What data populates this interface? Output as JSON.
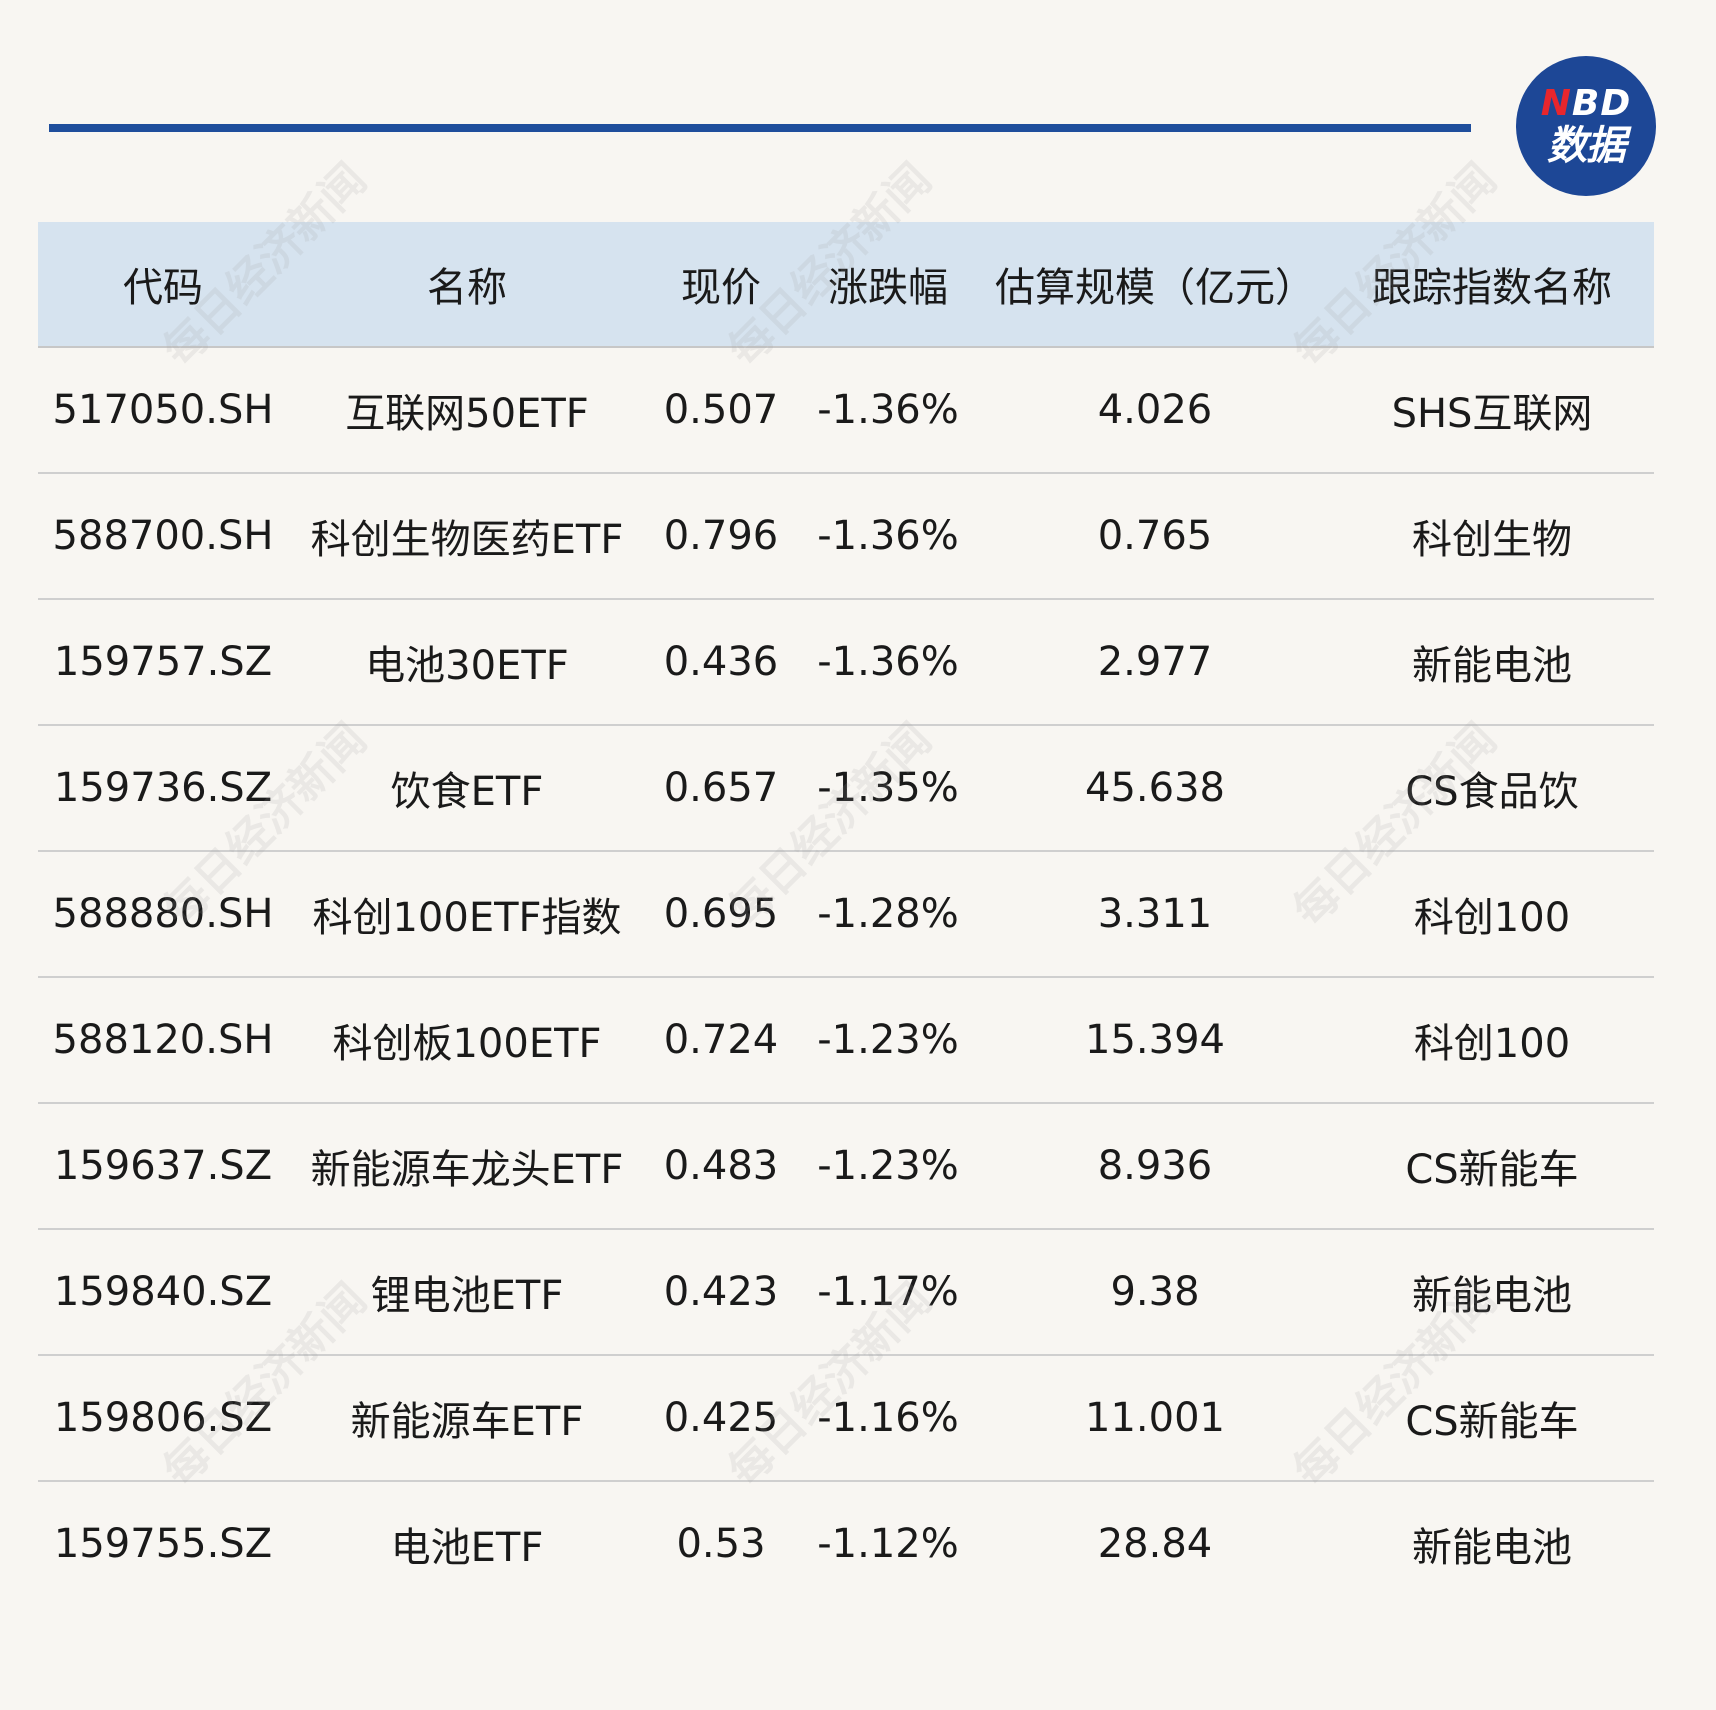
{
  "logo": {
    "top": "NBD",
    "top_accent": "N",
    "top_rest": "BD",
    "bottom": "数据"
  },
  "watermark_text": "每日经济新闻",
  "colors": {
    "rule": "#1f4e9c",
    "header_bg": "#d6e3ef",
    "logo_bg": "#1d4796",
    "logo_accent": "#e8262d",
    "background": "#f8f6f2"
  },
  "chart_data": {
    "type": "table",
    "columns": [
      "代码",
      "名称",
      "现价",
      "涨跌幅",
      "估算规模（亿元）",
      "跟踪指数名称"
    ],
    "rows": [
      [
        "517050.SH",
        "互联网50ETF",
        "0.507",
        "-1.36%",
        "4.026",
        "SHS互联网"
      ],
      [
        "588700.SH",
        "科创生物医药ETF",
        "0.796",
        "-1.36%",
        "0.765",
        "科创生物"
      ],
      [
        "159757.SZ",
        "电池30ETF",
        "0.436",
        "-1.36%",
        "2.977",
        "新能电池"
      ],
      [
        "159736.SZ",
        "饮食ETF",
        "0.657",
        "-1.35%",
        "45.638",
        "CS食品饮"
      ],
      [
        "588880.SH",
        "科创100ETF指数",
        "0.695",
        "-1.28%",
        "3.311",
        "科创100"
      ],
      [
        "588120.SH",
        "科创板100ETF",
        "0.724",
        "-1.23%",
        "15.394",
        "科创100"
      ],
      [
        "159637.SZ",
        "新能源车龙头ETF",
        "0.483",
        "-1.23%",
        "8.936",
        "CS新能车"
      ],
      [
        "159840.SZ",
        "锂电池ETF",
        "0.423",
        "-1.17%",
        "9.38",
        "新能电池"
      ],
      [
        "159806.SZ",
        "新能源车ETF",
        "0.425",
        "-1.16%",
        "11.001",
        "CS新能车"
      ],
      [
        "159755.SZ",
        "电池ETF",
        "0.53",
        "-1.12%",
        "28.84",
        "新能电池"
      ]
    ]
  }
}
